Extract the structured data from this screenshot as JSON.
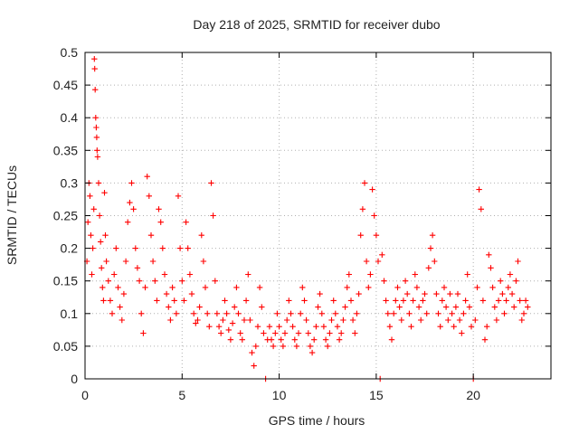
{
  "chart_data": {
    "type": "scatter",
    "title": "Day 218 of 2025, SRMTID for receiver dubo",
    "xlabel": "GPS time / hours",
    "ylabel": "SRMTID / TECUs",
    "xlim": [
      0,
      24
    ],
    "ylim": [
      0,
      0.5
    ],
    "xticks": [
      0,
      5,
      10,
      15,
      20
    ],
    "yticks": [
      0,
      0.05,
      0.1,
      0.15,
      0.2,
      0.25,
      0.3,
      0.35,
      0.4,
      0.45,
      0.5
    ],
    "xtick_labels": [
      "0",
      "5",
      "10",
      "15",
      "20"
    ],
    "ytick_labels": [
      "0",
      "0.05",
      "0.1",
      "0.15",
      "0.2",
      "0.25",
      "0.3",
      "0.35",
      "0.4",
      "0.45",
      "0.5"
    ],
    "grid": true,
    "marker": "+",
    "series": [
      {
        "name": "SRMTID",
        "color": "#ff0000",
        "points": [
          [
            0.1,
            0.18
          ],
          [
            0.15,
            0.24
          ],
          [
            0.2,
            0.3
          ],
          [
            0.25,
            0.28
          ],
          [
            0.3,
            0.22
          ],
          [
            0.35,
            0.16
          ],
          [
            0.4,
            0.2
          ],
          [
            0.45,
            0.26
          ],
          [
            0.48,
            0.49
          ],
          [
            0.5,
            0.475
          ],
          [
            0.52,
            0.443
          ],
          [
            0.55,
            0.4
          ],
          [
            0.58,
            0.385
          ],
          [
            0.6,
            0.37
          ],
          [
            0.62,
            0.35
          ],
          [
            0.65,
            0.34
          ],
          [
            0.7,
            0.3
          ],
          [
            0.75,
            0.25
          ],
          [
            0.8,
            0.21
          ],
          [
            0.85,
            0.17
          ],
          [
            0.9,
            0.14
          ],
          [
            0.95,
            0.12
          ],
          [
            1.0,
            0.285
          ],
          [
            1.05,
            0.22
          ],
          [
            1.1,
            0.18
          ],
          [
            1.2,
            0.15
          ],
          [
            1.3,
            0.12
          ],
          [
            1.4,
            0.1
          ],
          [
            1.5,
            0.16
          ],
          [
            1.6,
            0.2
          ],
          [
            1.7,
            0.14
          ],
          [
            1.8,
            0.11
          ],
          [
            1.9,
            0.09
          ],
          [
            2.0,
            0.13
          ],
          [
            2.1,
            0.18
          ],
          [
            2.2,
            0.24
          ],
          [
            2.3,
            0.27
          ],
          [
            2.4,
            0.3
          ],
          [
            2.5,
            0.26
          ],
          [
            2.6,
            0.2
          ],
          [
            2.7,
            0.17
          ],
          [
            2.8,
            0.15
          ],
          [
            2.9,
            0.1
          ],
          [
            3.0,
            0.07
          ],
          [
            3.1,
            0.14
          ],
          [
            3.2,
            0.31
          ],
          [
            3.3,
            0.28
          ],
          [
            3.4,
            0.22
          ],
          [
            3.5,
            0.18
          ],
          [
            3.6,
            0.15
          ],
          [
            3.7,
            0.12
          ],
          [
            3.8,
            0.26
          ],
          [
            3.9,
            0.24
          ],
          [
            4.0,
            0.2
          ],
          [
            4.1,
            0.16
          ],
          [
            4.2,
            0.13
          ],
          [
            4.3,
            0.11
          ],
          [
            4.4,
            0.09
          ],
          [
            4.5,
            0.14
          ],
          [
            4.6,
            0.12
          ],
          [
            4.7,
            0.1
          ],
          [
            4.8,
            0.28
          ],
          [
            4.9,
            0.2
          ],
          [
            5.0,
            0.15
          ],
          [
            5.1,
            0.12
          ],
          [
            5.2,
            0.24
          ],
          [
            5.3,
            0.2
          ],
          [
            5.4,
            0.16
          ],
          [
            5.5,
            0.13
          ],
          [
            5.6,
            0.1
          ],
          [
            5.7,
            0.085
          ],
          [
            5.8,
            0.09
          ],
          [
            5.9,
            0.11
          ],
          [
            6.0,
            0.22
          ],
          [
            6.1,
            0.18
          ],
          [
            6.2,
            0.14
          ],
          [
            6.3,
            0.1
          ],
          [
            6.4,
            0.08
          ],
          [
            6.5,
            0.3
          ],
          [
            6.6,
            0.25
          ],
          [
            6.7,
            0.15
          ],
          [
            6.8,
            0.1
          ],
          [
            6.9,
            0.08
          ],
          [
            7.0,
            0.07
          ],
          [
            7.1,
            0.09
          ],
          [
            7.2,
            0.12
          ],
          [
            7.3,
            0.1
          ],
          [
            7.4,
            0.075
          ],
          [
            7.5,
            0.06
          ],
          [
            7.6,
            0.085
          ],
          [
            7.7,
            0.11
          ],
          [
            7.8,
            0.14
          ],
          [
            7.9,
            0.1
          ],
          [
            8.0,
            0.07
          ],
          [
            8.1,
            0.06
          ],
          [
            8.2,
            0.09
          ],
          [
            8.3,
            0.12
          ],
          [
            8.4,
            0.16
          ],
          [
            8.5,
            0.09
          ],
          [
            8.6,
            0.04
          ],
          [
            8.7,
            0.02
          ],
          [
            8.8,
            0.05
          ],
          [
            8.9,
            0.08
          ],
          [
            9.0,
            0.14
          ],
          [
            9.1,
            0.11
          ],
          [
            9.2,
            0.07
          ],
          [
            9.3,
            0.0
          ],
          [
            9.4,
            0.06
          ],
          [
            9.5,
            0.08
          ],
          [
            9.6,
            0.06
          ],
          [
            9.7,
            0.05
          ],
          [
            9.8,
            0.07
          ],
          [
            9.9,
            0.1
          ],
          [
            10.0,
            0.08
          ],
          [
            10.1,
            0.06
          ],
          [
            10.2,
            0.05
          ],
          [
            10.3,
            0.07
          ],
          [
            10.4,
            0.09
          ],
          [
            10.5,
            0.12
          ],
          [
            10.6,
            0.1
          ],
          [
            10.7,
            0.08
          ],
          [
            10.8,
            0.06
          ],
          [
            10.9,
            0.05
          ],
          [
            11.0,
            0.07
          ],
          [
            11.1,
            0.1
          ],
          [
            11.2,
            0.14
          ],
          [
            11.3,
            0.12
          ],
          [
            11.4,
            0.09
          ],
          [
            11.5,
            0.07
          ],
          [
            11.6,
            0.05
          ],
          [
            11.7,
            0.04
          ],
          [
            11.8,
            0.06
          ],
          [
            11.9,
            0.08
          ],
          [
            12.0,
            0.11
          ],
          [
            12.1,
            0.13
          ],
          [
            12.2,
            0.1
          ],
          [
            12.3,
            0.08
          ],
          [
            12.4,
            0.06
          ],
          [
            12.5,
            0.05
          ],
          [
            12.6,
            0.07
          ],
          [
            12.7,
            0.09
          ],
          [
            12.8,
            0.12
          ],
          [
            12.9,
            0.1
          ],
          [
            13.0,
            0.08
          ],
          [
            13.1,
            0.06
          ],
          [
            13.2,
            0.07
          ],
          [
            13.3,
            0.09
          ],
          [
            13.4,
            0.11
          ],
          [
            13.5,
            0.14
          ],
          [
            13.6,
            0.16
          ],
          [
            13.7,
            0.12
          ],
          [
            13.8,
            0.09
          ],
          [
            13.9,
            0.07
          ],
          [
            14.0,
            0.1
          ],
          [
            14.1,
            0.13
          ],
          [
            14.2,
            0.22
          ],
          [
            14.3,
            0.26
          ],
          [
            14.4,
            0.3
          ],
          [
            14.5,
            0.18
          ],
          [
            14.6,
            0.14
          ],
          [
            14.7,
            0.16
          ],
          [
            14.8,
            0.29
          ],
          [
            14.9,
            0.25
          ],
          [
            15.0,
            0.22
          ],
          [
            15.1,
            0.18
          ],
          [
            15.2,
            0.0
          ],
          [
            15.3,
            0.19
          ],
          [
            15.4,
            0.15
          ],
          [
            15.5,
            0.12
          ],
          [
            15.6,
            0.1
          ],
          [
            15.7,
            0.08
          ],
          [
            15.8,
            0.06
          ],
          [
            15.9,
            0.1
          ],
          [
            16.0,
            0.12
          ],
          [
            16.1,
            0.14
          ],
          [
            16.2,
            0.11
          ],
          [
            16.3,
            0.09
          ],
          [
            16.4,
            0.12
          ],
          [
            16.5,
            0.15
          ],
          [
            16.6,
            0.13
          ],
          [
            16.7,
            0.1
          ],
          [
            16.8,
            0.08
          ],
          [
            16.9,
            0.12
          ],
          [
            17.0,
            0.16
          ],
          [
            17.1,
            0.14
          ],
          [
            17.2,
            0.11
          ],
          [
            17.3,
            0.09
          ],
          [
            17.4,
            0.12
          ],
          [
            17.5,
            0.13
          ],
          [
            17.6,
            0.1
          ],
          [
            17.7,
            0.17
          ],
          [
            17.8,
            0.2
          ],
          [
            17.9,
            0.22
          ],
          [
            18.0,
            0.18
          ],
          [
            18.1,
            0.13
          ],
          [
            18.2,
            0.1
          ],
          [
            18.3,
            0.08
          ],
          [
            18.4,
            0.12
          ],
          [
            18.5,
            0.14
          ],
          [
            18.6,
            0.11
          ],
          [
            18.7,
            0.09
          ],
          [
            18.8,
            0.13
          ],
          [
            18.9,
            0.1
          ],
          [
            19.0,
            0.08
          ],
          [
            19.1,
            0.11
          ],
          [
            19.2,
            0.13
          ],
          [
            19.3,
            0.09
          ],
          [
            19.4,
            0.07
          ],
          [
            19.5,
            0.1
          ],
          [
            19.6,
            0.12
          ],
          [
            19.7,
            0.16
          ],
          [
            19.8,
            0.11
          ],
          [
            19.9,
            0.08
          ],
          [
            20.0,
            0.0
          ],
          [
            20.1,
            0.09
          ],
          [
            20.2,
            0.14
          ],
          [
            20.3,
            0.29
          ],
          [
            20.4,
            0.26
          ],
          [
            20.5,
            0.12
          ],
          [
            20.6,
            0.06
          ],
          [
            20.7,
            0.08
          ],
          [
            20.8,
            0.19
          ],
          [
            20.9,
            0.17
          ],
          [
            21.0,
            0.14
          ],
          [
            21.1,
            0.11
          ],
          [
            21.2,
            0.09
          ],
          [
            21.3,
            0.12
          ],
          [
            21.4,
            0.15
          ],
          [
            21.5,
            0.13
          ],
          [
            21.6,
            0.1
          ],
          [
            21.7,
            0.12
          ],
          [
            21.8,
            0.14
          ],
          [
            21.9,
            0.16
          ],
          [
            22.0,
            0.13
          ],
          [
            22.1,
            0.11
          ],
          [
            22.2,
            0.15
          ],
          [
            22.3,
            0.18
          ],
          [
            22.4,
            0.12
          ],
          [
            22.5,
            0.09
          ],
          [
            22.6,
            0.1
          ],
          [
            22.7,
            0.12
          ],
          [
            22.8,
            0.11
          ]
        ]
      }
    ]
  }
}
